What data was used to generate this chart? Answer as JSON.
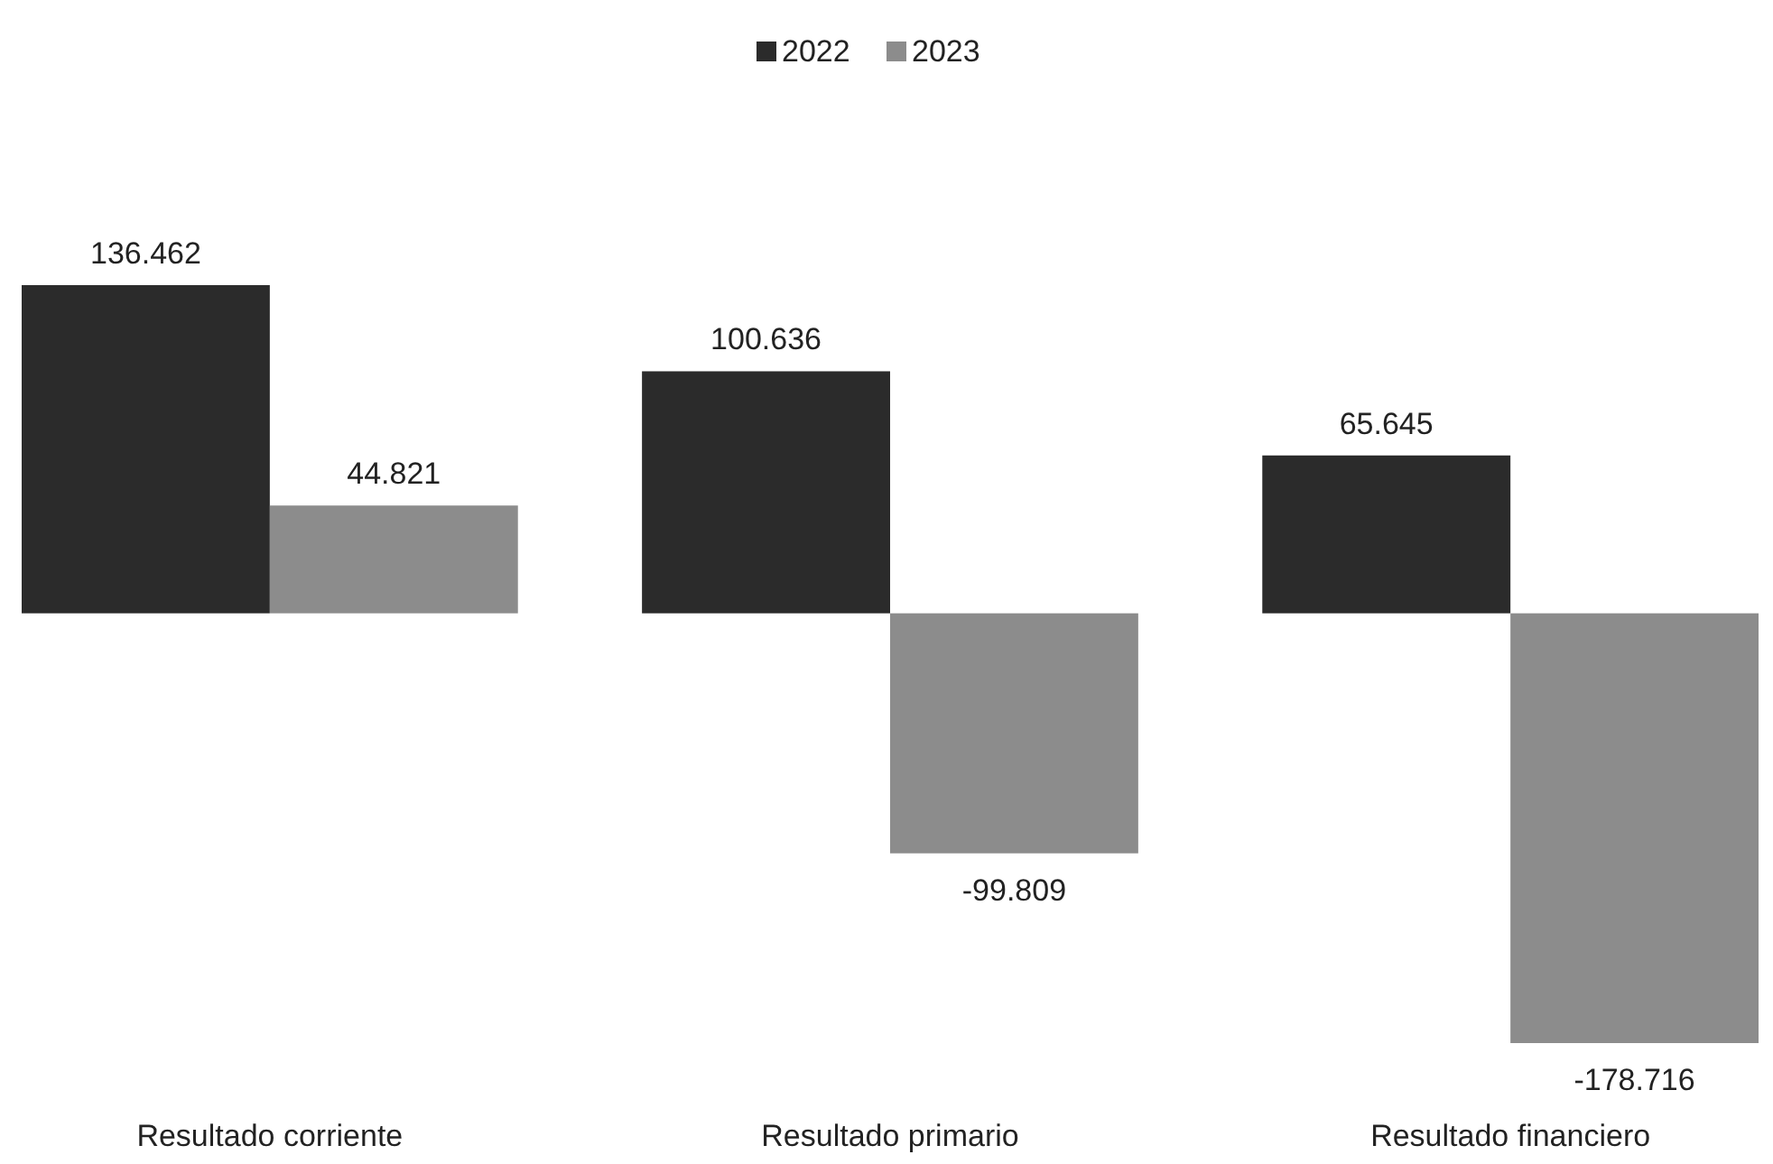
{
  "chart_data": {
    "type": "bar",
    "categories": [
      "Resultado corriente",
      "Resultado primario",
      "Resultado financiero"
    ],
    "series": [
      {
        "name": "2022",
        "color": "#2b2b2b",
        "values": [
          136.462,
          100.636,
          65.645
        ]
      },
      {
        "name": "2023",
        "color": "#8c8c8c",
        "values": [
          44.821,
          -99.809,
          -178.716
        ]
      }
    ],
    "data_labels": true,
    "legend": "top"
  }
}
